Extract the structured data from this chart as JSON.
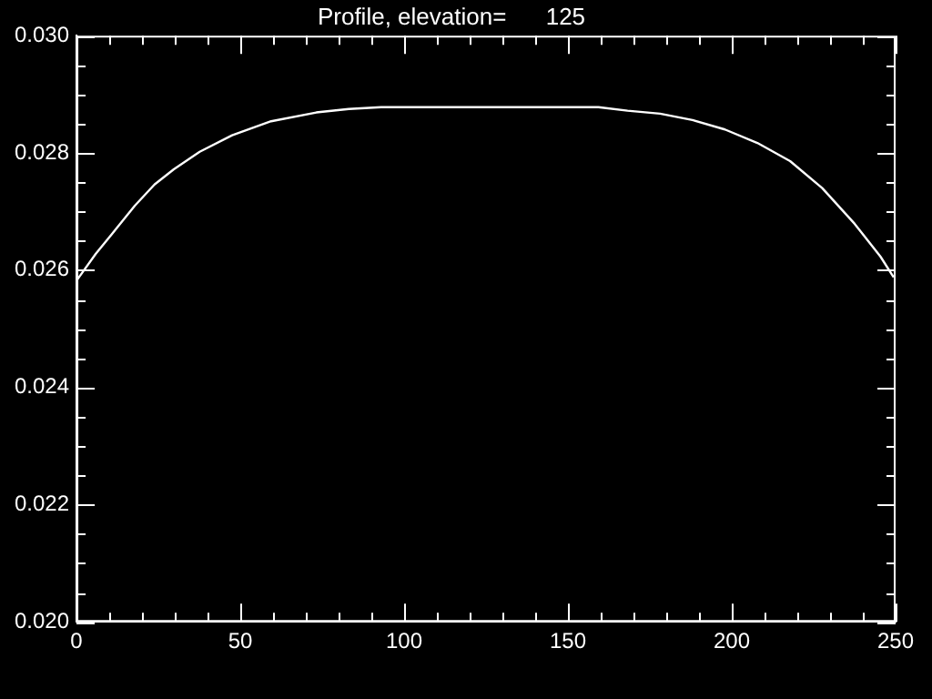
{
  "chart_data": {
    "type": "line",
    "title": "Profile, elevation=      125",
    "color": "#ffffff",
    "x": [
      0,
      5.9,
      11.9,
      17.8,
      23.8,
      29.7,
      37.6,
      47.5,
      59.4,
      73.2,
      83.1,
      93,
      125,
      159.3,
      168.2,
      178.1,
      188,
      197.9,
      207.8,
      217.8,
      227.6,
      237.5,
      245.4,
      249.4
    ],
    "values": [
      0.02582,
      0.02628,
      0.02669,
      0.0271,
      0.02746,
      0.02772,
      0.02802,
      0.0283,
      0.02854,
      0.02869,
      0.02875,
      0.02878,
      0.02878,
      0.02878,
      0.02872,
      0.02867,
      0.02856,
      0.0284,
      0.02817,
      0.02786,
      0.0274,
      0.02679,
      0.02623,
      0.02588
    ],
    "xlim": [
      0,
      250
    ],
    "xticks": [
      0,
      {
        "value": 10,
        "label": null
      },
      {
        "value": 20,
        "label": null
      },
      {
        "value": 30,
        "label": null
      },
      {
        "value": 40,
        "label": null
      },
      50,
      {
        "value": 60,
        "label": null
      },
      {
        "value": 70,
        "label": null
      },
      {
        "value": 80,
        "label": null
      },
      {
        "value": 90,
        "label": null
      },
      100,
      {
        "value": 110,
        "label": null
      },
      {
        "value": 120,
        "label": null
      },
      {
        "value": 130,
        "label": null
      },
      {
        "value": 140,
        "label": null
      },
      150,
      {
        "value": 160,
        "label": null
      },
      {
        "value": 170,
        "label": null
      },
      {
        "value": 180,
        "label": null
      },
      {
        "value": 190,
        "label": null
      },
      200,
      {
        "value": 210,
        "label": null
      },
      {
        "value": 220,
        "label": null
      },
      {
        "value": 230,
        "label": null
      },
      {
        "value": 240,
        "label": null
      },
      250
    ],
    "ylim": [
      0.02,
      0.03
    ],
    "yticks": [
      {
        "value": 0.02,
        "label": "0.020"
      },
      {
        "value": 0.0205,
        "label": null
      },
      {
        "value": 0.021,
        "label": null
      },
      {
        "value": 0.0215,
        "label": null
      },
      {
        "value": 0.022,
        "label": "0.022"
      },
      {
        "value": 0.0225,
        "label": null
      },
      {
        "value": 0.023,
        "label": null
      },
      {
        "value": 0.0235,
        "label": null
      },
      {
        "value": 0.024,
        "label": "0.024"
      },
      {
        "value": 0.0245,
        "label": null
      },
      {
        "value": 0.025,
        "label": null
      },
      {
        "value": 0.0255,
        "label": null
      },
      {
        "value": 0.026,
        "label": "0.026"
      },
      {
        "value": 0.0265,
        "label": null
      },
      {
        "value": 0.027,
        "label": null
      },
      {
        "value": 0.0275,
        "label": null
      },
      {
        "value": 0.028,
        "label": "0.028"
      },
      {
        "value": 0.0285,
        "label": null
      },
      {
        "value": 0.029,
        "label": null
      },
      {
        "value": 0.0295,
        "label": null
      },
      {
        "value": 0.03,
        "label": "0.030"
      }
    ]
  }
}
